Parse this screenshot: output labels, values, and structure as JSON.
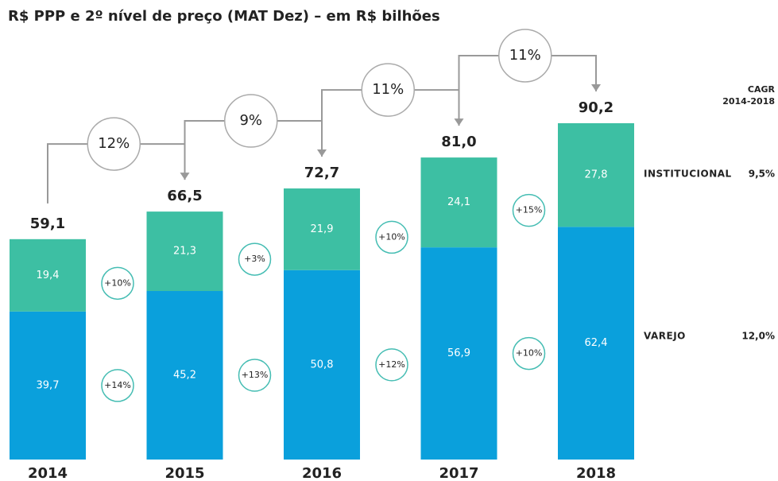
{
  "chart_data": {
    "type": "bar",
    "stacked": true,
    "title": "R$ PPP e 2º nível de preço (MAT Dez) – em R$ bilhões",
    "categories": [
      "2014",
      "2015",
      "2016",
      "2017",
      "2018"
    ],
    "series": [
      {
        "name": "VAREJO",
        "color": "#0aa0dc",
        "values": [
          39.7,
          45.2,
          50.8,
          56.9,
          62.4
        ],
        "value_labels": [
          "39,7",
          "45,2",
          "50,8",
          "56,9",
          "62,4"
        ],
        "growth_labels": [
          "+14%",
          "+13%",
          "+12%",
          "+10%"
        ],
        "cagr": "12,0%"
      },
      {
        "name": "INSTITUCIONAL",
        "color": "#3dbfa3",
        "values": [
          19.4,
          21.3,
          21.9,
          24.1,
          27.8
        ],
        "value_labels": [
          "19,4",
          "21,3",
          "21,9",
          "24,1",
          "27,8"
        ],
        "growth_labels": [
          "+10%",
          "+3%",
          "+10%",
          "+15%"
        ],
        "cagr": "9,5%"
      }
    ],
    "total_labels": [
      "59,1",
      "66,5",
      "72,7",
      "81,0",
      "90,2"
    ],
    "total_growth_labels": [
      "12%",
      "9%",
      "11%",
      "11%"
    ],
    "cagr_title": [
      "CAGR",
      "2014-2018"
    ]
  }
}
